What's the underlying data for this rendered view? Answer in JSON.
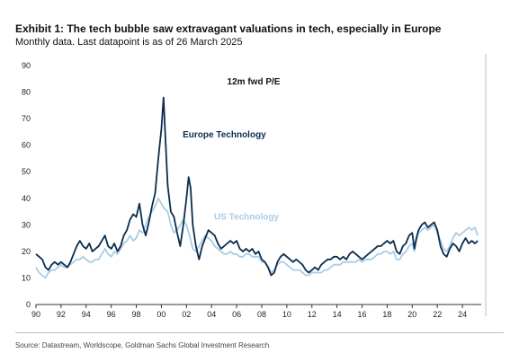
{
  "header": {
    "title": "Exhibit 1: The tech bubble saw extravagant valuations in tech, especially in Europe",
    "subtitle": "Monthly data. Last datapoint is as of 26 March 2025"
  },
  "footer": {
    "source": "Source: Datastream, Worldscope, Goldman Sachs Global Investment Research"
  },
  "chart_data": {
    "type": "line",
    "title": "12m fwd P/E",
    "xlabel": "",
    "ylabel": "",
    "xlim": [
      1990,
      2025.5
    ],
    "ylim": [
      0,
      90
    ],
    "yticks": [
      0,
      10,
      20,
      30,
      40,
      50,
      60,
      70,
      80,
      90
    ],
    "xticks": [
      {
        "value": 1990,
        "label": "90"
      },
      {
        "value": 1992,
        "label": "92"
      },
      {
        "value": 1994,
        "label": "94"
      },
      {
        "value": 1996,
        "label": "96"
      },
      {
        "value": 1998,
        "label": "98"
      },
      {
        "value": 2000,
        "label": "00"
      },
      {
        "value": 2002,
        "label": "02"
      },
      {
        "value": 2004,
        "label": "04"
      },
      {
        "value": 2006,
        "label": "06"
      },
      {
        "value": 2008,
        "label": "08"
      },
      {
        "value": 2010,
        "label": "10"
      },
      {
        "value": 2012,
        "label": "12"
      },
      {
        "value": 2014,
        "label": "14"
      },
      {
        "value": 2016,
        "label": "16"
      },
      {
        "value": 2018,
        "label": "18"
      },
      {
        "value": 2020,
        "label": "20"
      },
      {
        "value": 2022,
        "label": "22"
      },
      {
        "value": 2024,
        "label": "24"
      }
    ],
    "grid": false,
    "colors": {
      "europe": "#0b2c4f",
      "us": "#a9cde6"
    },
    "series": [
      {
        "name": "Europe Technology",
        "color": "#0b2c4f",
        "points": [
          [
            1990.0,
            19
          ],
          [
            1990.25,
            18
          ],
          [
            1990.5,
            17
          ],
          [
            1990.75,
            14
          ],
          [
            1991.0,
            13
          ],
          [
            1991.25,
            15
          ],
          [
            1991.5,
            16
          ],
          [
            1991.75,
            15
          ],
          [
            1992.0,
            16
          ],
          [
            1992.25,
            15
          ],
          [
            1992.5,
            14
          ],
          [
            1992.75,
            16
          ],
          [
            1993.0,
            19
          ],
          [
            1993.25,
            22
          ],
          [
            1993.5,
            24
          ],
          [
            1993.75,
            22
          ],
          [
            1994.0,
            21
          ],
          [
            1994.25,
            23
          ],
          [
            1994.5,
            20
          ],
          [
            1994.75,
            21
          ],
          [
            1995.0,
            22
          ],
          [
            1995.25,
            24
          ],
          [
            1995.5,
            26
          ],
          [
            1995.75,
            22
          ],
          [
            1996.0,
            21
          ],
          [
            1996.25,
            23
          ],
          [
            1996.5,
            20
          ],
          [
            1996.75,
            22
          ],
          [
            1997.0,
            26
          ],
          [
            1997.25,
            28
          ],
          [
            1997.5,
            32
          ],
          [
            1997.75,
            34
          ],
          [
            1998.0,
            33
          ],
          [
            1998.25,
            38
          ],
          [
            1998.5,
            30
          ],
          [
            1998.75,
            26
          ],
          [
            1999.0,
            31
          ],
          [
            1999.25,
            37
          ],
          [
            1999.5,
            42
          ],
          [
            1999.75,
            55
          ],
          [
            2000.0,
            66
          ],
          [
            2000.17,
            78
          ],
          [
            2000.33,
            62
          ],
          [
            2000.5,
            45
          ],
          [
            2000.75,
            35
          ],
          [
            2001.0,
            33
          ],
          [
            2001.25,
            27
          ],
          [
            2001.5,
            22
          ],
          [
            2001.75,
            30
          ],
          [
            2002.0,
            40
          ],
          [
            2002.17,
            48
          ],
          [
            2002.33,
            44
          ],
          [
            2002.5,
            30
          ],
          [
            2002.75,
            22
          ],
          [
            2003.0,
            17
          ],
          [
            2003.25,
            22
          ],
          [
            2003.5,
            25
          ],
          [
            2003.75,
            28
          ],
          [
            2004.0,
            27
          ],
          [
            2004.25,
            26
          ],
          [
            2004.5,
            23
          ],
          [
            2004.75,
            21
          ],
          [
            2005.0,
            22
          ],
          [
            2005.25,
            23
          ],
          [
            2005.5,
            24
          ],
          [
            2005.75,
            23
          ],
          [
            2006.0,
            24
          ],
          [
            2006.25,
            21
          ],
          [
            2006.5,
            20
          ],
          [
            2006.75,
            21
          ],
          [
            2007.0,
            20
          ],
          [
            2007.25,
            21
          ],
          [
            2007.5,
            19
          ],
          [
            2007.75,
            20
          ],
          [
            2008.0,
            17
          ],
          [
            2008.25,
            16
          ],
          [
            2008.5,
            14
          ],
          [
            2008.75,
            11
          ],
          [
            2009.0,
            12
          ],
          [
            2009.25,
            16
          ],
          [
            2009.5,
            18
          ],
          [
            2009.75,
            19
          ],
          [
            2010.0,
            18
          ],
          [
            2010.25,
            17
          ],
          [
            2010.5,
            16
          ],
          [
            2010.75,
            17
          ],
          [
            2011.0,
            16
          ],
          [
            2011.25,
            15
          ],
          [
            2011.5,
            13
          ],
          [
            2011.75,
            12
          ],
          [
            2012.0,
            13
          ],
          [
            2012.25,
            14
          ],
          [
            2012.5,
            13
          ],
          [
            2012.75,
            15
          ],
          [
            2013.0,
            16
          ],
          [
            2013.25,
            17
          ],
          [
            2013.5,
            17
          ],
          [
            2013.75,
            18
          ],
          [
            2014.0,
            18
          ],
          [
            2014.25,
            17
          ],
          [
            2014.5,
            18
          ],
          [
            2014.75,
            17
          ],
          [
            2015.0,
            19
          ],
          [
            2015.25,
            20
          ],
          [
            2015.5,
            19
          ],
          [
            2015.75,
            18
          ],
          [
            2016.0,
            17
          ],
          [
            2016.25,
            18
          ],
          [
            2016.5,
            19
          ],
          [
            2016.75,
            20
          ],
          [
            2017.0,
            21
          ],
          [
            2017.25,
            22
          ],
          [
            2017.5,
            22
          ],
          [
            2017.75,
            23
          ],
          [
            2018.0,
            24
          ],
          [
            2018.25,
            23
          ],
          [
            2018.5,
            24
          ],
          [
            2018.75,
            20
          ],
          [
            2019.0,
            19
          ],
          [
            2019.25,
            22
          ],
          [
            2019.5,
            23
          ],
          [
            2019.75,
            26
          ],
          [
            2020.0,
            27
          ],
          [
            2020.17,
            21
          ],
          [
            2020.33,
            25
          ],
          [
            2020.5,
            28
          ],
          [
            2020.75,
            30
          ],
          [
            2021.0,
            31
          ],
          [
            2021.25,
            29
          ],
          [
            2021.5,
            30
          ],
          [
            2021.75,
            31
          ],
          [
            2022.0,
            28
          ],
          [
            2022.25,
            22
          ],
          [
            2022.5,
            19
          ],
          [
            2022.75,
            18
          ],
          [
            2023.0,
            21
          ],
          [
            2023.25,
            23
          ],
          [
            2023.5,
            22
          ],
          [
            2023.75,
            20
          ],
          [
            2024.0,
            23
          ],
          [
            2024.25,
            25
          ],
          [
            2024.5,
            23
          ],
          [
            2024.75,
            24
          ],
          [
            2025.0,
            23
          ],
          [
            2025.23,
            24
          ]
        ]
      },
      {
        "name": "US Technology",
        "color": "#a9cde6",
        "points": [
          [
            1990.0,
            14
          ],
          [
            1990.25,
            12
          ],
          [
            1990.5,
            11
          ],
          [
            1990.75,
            10
          ],
          [
            1991.0,
            12
          ],
          [
            1991.25,
            13
          ],
          [
            1991.5,
            13
          ],
          [
            1991.75,
            14
          ],
          [
            1992.0,
            15
          ],
          [
            1992.25,
            14
          ],
          [
            1992.5,
            14
          ],
          [
            1992.75,
            15
          ],
          [
            1993.0,
            16
          ],
          [
            1993.25,
            17
          ],
          [
            1993.5,
            17
          ],
          [
            1993.75,
            18
          ],
          [
            1994.0,
            17
          ],
          [
            1994.25,
            16
          ],
          [
            1994.5,
            16
          ],
          [
            1994.75,
            17
          ],
          [
            1995.0,
            17
          ],
          [
            1995.25,
            19
          ],
          [
            1995.5,
            21
          ],
          [
            1995.75,
            19
          ],
          [
            1996.0,
            18
          ],
          [
            1996.25,
            20
          ],
          [
            1996.5,
            19
          ],
          [
            1996.75,
            21
          ],
          [
            1997.0,
            23
          ],
          [
            1997.25,
            24
          ],
          [
            1997.5,
            26
          ],
          [
            1997.75,
            24
          ],
          [
            1998.0,
            25
          ],
          [
            1998.25,
            28
          ],
          [
            1998.5,
            27
          ],
          [
            1998.75,
            30
          ],
          [
            1999.0,
            33
          ],
          [
            1999.25,
            35
          ],
          [
            1999.5,
            37
          ],
          [
            1999.75,
            40
          ],
          [
            2000.0,
            38
          ],
          [
            2000.25,
            36
          ],
          [
            2000.5,
            35
          ],
          [
            2000.75,
            30
          ],
          [
            2001.0,
            27
          ],
          [
            2001.25,
            28
          ],
          [
            2001.5,
            30
          ],
          [
            2001.75,
            32
          ],
          [
            2002.0,
            30
          ],
          [
            2002.25,
            26
          ],
          [
            2002.5,
            21
          ],
          [
            2002.75,
            20
          ],
          [
            2003.0,
            22
          ],
          [
            2003.25,
            24
          ],
          [
            2003.5,
            26
          ],
          [
            2003.75,
            25
          ],
          [
            2004.0,
            24
          ],
          [
            2004.25,
            22
          ],
          [
            2004.5,
            21
          ],
          [
            2004.75,
            20
          ],
          [
            2005.0,
            19
          ],
          [
            2005.25,
            19
          ],
          [
            2005.5,
            20
          ],
          [
            2005.75,
            19
          ],
          [
            2006.0,
            19
          ],
          [
            2006.25,
            18
          ],
          [
            2006.5,
            18
          ],
          [
            2006.75,
            19
          ],
          [
            2007.0,
            19
          ],
          [
            2007.25,
            18
          ],
          [
            2007.5,
            18
          ],
          [
            2007.75,
            18
          ],
          [
            2008.0,
            16
          ],
          [
            2008.25,
            16
          ],
          [
            2008.5,
            14
          ],
          [
            2008.75,
            12
          ],
          [
            2009.0,
            13
          ],
          [
            2009.25,
            15
          ],
          [
            2009.5,
            16
          ],
          [
            2009.75,
            16
          ],
          [
            2010.0,
            15
          ],
          [
            2010.25,
            14
          ],
          [
            2010.5,
            13
          ],
          [
            2010.75,
            13
          ],
          [
            2011.0,
            13
          ],
          [
            2011.25,
            12
          ],
          [
            2011.5,
            11
          ],
          [
            2011.75,
            11
          ],
          [
            2012.0,
            12
          ],
          [
            2012.25,
            12
          ],
          [
            2012.5,
            12
          ],
          [
            2012.75,
            12
          ],
          [
            2013.0,
            13
          ],
          [
            2013.25,
            13
          ],
          [
            2013.5,
            14
          ],
          [
            2013.75,
            15
          ],
          [
            2014.0,
            15
          ],
          [
            2014.25,
            15
          ],
          [
            2014.5,
            16
          ],
          [
            2014.75,
            16
          ],
          [
            2015.0,
            16
          ],
          [
            2015.25,
            16
          ],
          [
            2015.5,
            16
          ],
          [
            2015.75,
            17
          ],
          [
            2016.0,
            16
          ],
          [
            2016.25,
            17
          ],
          [
            2016.5,
            17
          ],
          [
            2016.75,
            17
          ],
          [
            2017.0,
            18
          ],
          [
            2017.25,
            19
          ],
          [
            2017.5,
            19
          ],
          [
            2017.75,
            20
          ],
          [
            2018.0,
            20
          ],
          [
            2018.25,
            19
          ],
          [
            2018.5,
            20
          ],
          [
            2018.75,
            17
          ],
          [
            2019.0,
            17
          ],
          [
            2019.25,
            19
          ],
          [
            2019.5,
            20
          ],
          [
            2019.75,
            22
          ],
          [
            2020.0,
            23
          ],
          [
            2020.17,
            20
          ],
          [
            2020.33,
            24
          ],
          [
            2020.5,
            27
          ],
          [
            2020.75,
            28
          ],
          [
            2021.0,
            29
          ],
          [
            2021.25,
            28
          ],
          [
            2021.5,
            29
          ],
          [
            2021.75,
            30
          ],
          [
            2022.0,
            27
          ],
          [
            2022.25,
            24
          ],
          [
            2022.5,
            21
          ],
          [
            2022.75,
            20
          ],
          [
            2023.0,
            22
          ],
          [
            2023.25,
            25
          ],
          [
            2023.5,
            27
          ],
          [
            2023.75,
            26
          ],
          [
            2024.0,
            27
          ],
          [
            2024.25,
            28
          ],
          [
            2024.5,
            29
          ],
          [
            2024.75,
            28
          ],
          [
            2025.0,
            29
          ],
          [
            2025.23,
            26
          ]
        ]
      }
    ],
    "annotations": [
      {
        "text": "Europe Technology",
        "x": 2001.7,
        "y": 63,
        "color": "#0b2c4f"
      },
      {
        "text": "US Technology",
        "x": 2004.2,
        "y": 32,
        "color": "#a9cde6"
      }
    ]
  }
}
